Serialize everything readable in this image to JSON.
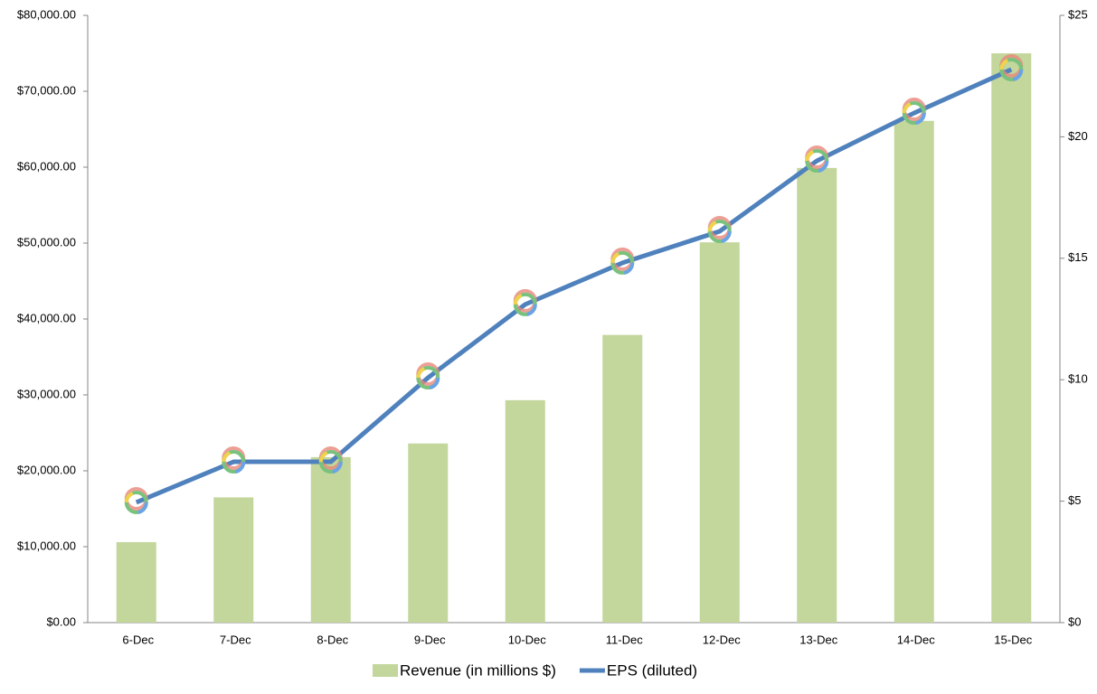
{
  "chart_data": {
    "type": "bar_line",
    "categories": [
      "6-Dec",
      "7-Dec",
      "8-Dec",
      "9-Dec",
      "10-Dec",
      "11-Dec",
      "12-Dec",
      "13-Dec",
      "14-Dec",
      "15-Dec"
    ],
    "series": [
      {
        "name": "Revenue (in millions $)",
        "color": "#c3d69b",
        "type": "bar",
        "values": [
          10600,
          16500,
          21800,
          23600,
          29300,
          37900,
          50100,
          59900,
          66100,
          75000
        ]
      },
      {
        "name": "EPS (diluted)",
        "color": "#4f81bd",
        "type": "line",
        "axis": "y2",
        "values": [
          4.95,
          6.62,
          6.62,
          10.08,
          13.1,
          14.81,
          16.11,
          19.01,
          20.98,
          22.77
        ]
      }
    ],
    "ylim": [
      0,
      80000
    ],
    "yticks": [
      {
        "value": 0,
        "label": "$0.00"
      },
      {
        "value": 10000,
        "label": "$10,000.00"
      },
      {
        "value": 20000,
        "label": "$20,000.00"
      },
      {
        "value": 30000,
        "label": "$30,000.00"
      },
      {
        "value": 40000,
        "label": "$40,000.00"
      },
      {
        "value": 50000,
        "label": "$50,000.00"
      },
      {
        "value": 60000,
        "label": "$60,000.00"
      },
      {
        "value": 70000,
        "label": "$70,000.00"
      },
      {
        "value": 80000,
        "label": "$80,000.00"
      }
    ],
    "y2lim": [
      0,
      25
    ],
    "y2ticks": [
      {
        "value": 0,
        "label": "$0"
      },
      {
        "value": 5,
        "label": "$5"
      },
      {
        "value": 10,
        "label": "$10"
      },
      {
        "value": 15,
        "label": "$15"
      },
      {
        "value": 20,
        "label": "$20"
      },
      {
        "value": 25,
        "label": "$25"
      }
    ],
    "legend": "bottom",
    "grid": false
  }
}
